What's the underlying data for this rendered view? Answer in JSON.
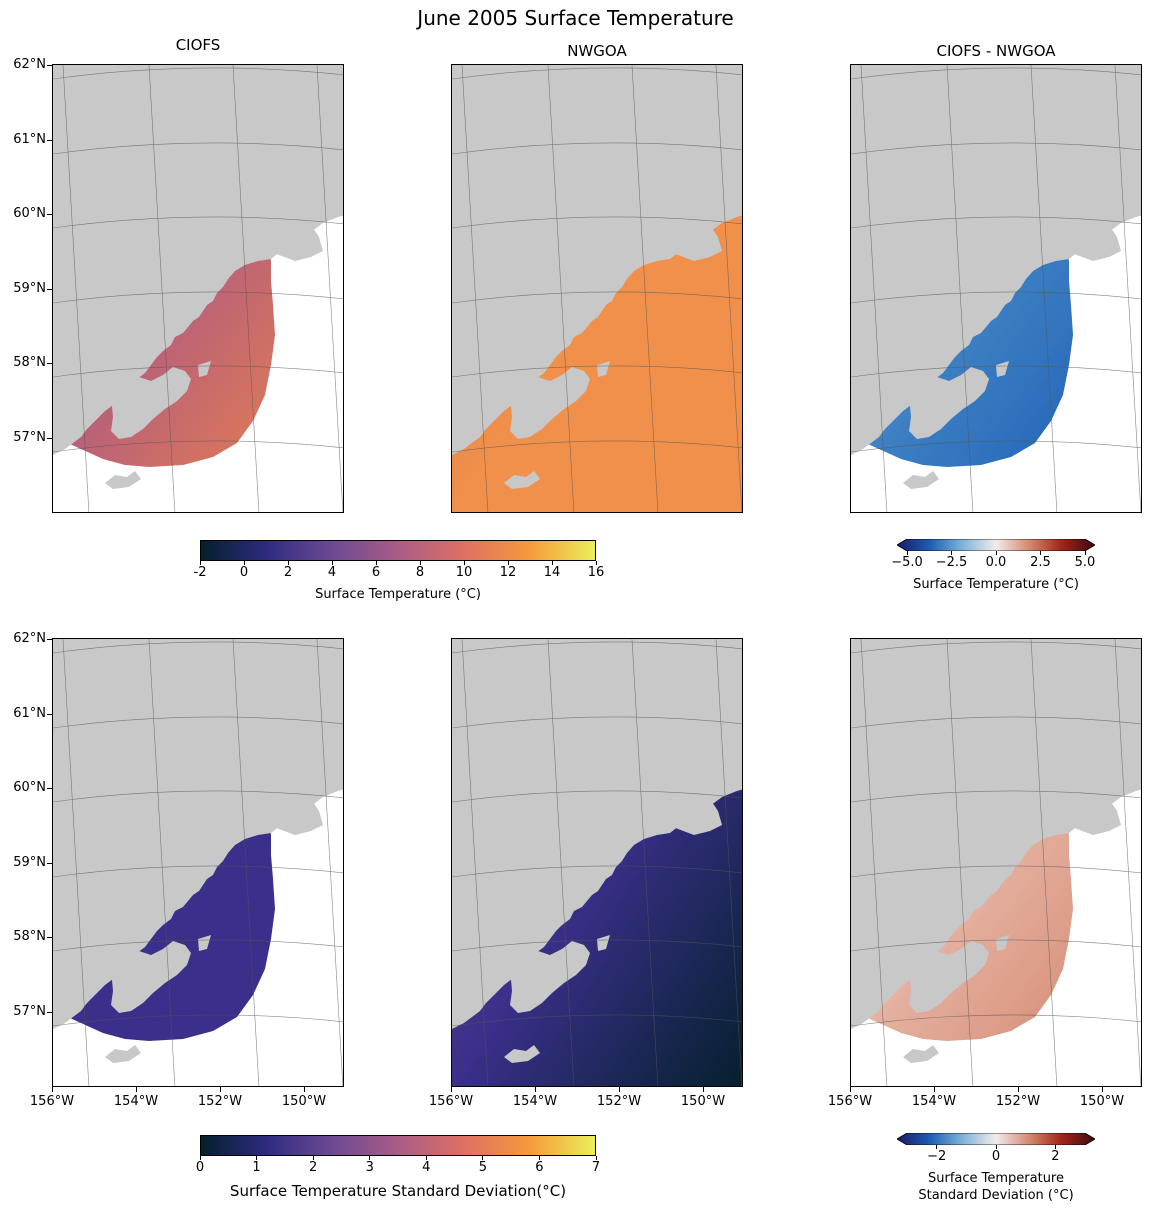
{
  "figure": {
    "title": "June 2005 Surface Temperature"
  },
  "columns": [
    {
      "title": "CIOFS",
      "kind": "ciofs"
    },
    {
      "title": "NWGOA",
      "kind": "nwgoa"
    },
    {
      "title": "CIOFS - NWGOA",
      "kind": "diff"
    }
  ],
  "lat_ticks": [
    "62°N",
    "61°N",
    "60°N",
    "59°N",
    "58°N",
    "57°N"
  ],
  "lon_ticks": [
    "156°W",
    "154°W",
    "152°W",
    "150°W"
  ],
  "colorbars": {
    "top_temp": {
      "label": "Surface Temperature (°C)",
      "ticks": [
        "-2",
        "0",
        "2",
        "4",
        "6",
        "8",
        "10",
        "12",
        "14",
        "16"
      ],
      "range": [
        -2,
        16
      ],
      "colormap": "thermal"
    },
    "top_diff": {
      "label": "Surface Temperature (°C)",
      "ticks": [
        "−5.0",
        "−2.5",
        "0.0",
        "2.5",
        "5.0"
      ],
      "range": [
        -5,
        5
      ],
      "colormap": "balance",
      "extend": "both"
    },
    "bottom_std": {
      "label": "Surface Temperature Standard Deviation(°C)",
      "ticks": [
        "0",
        "1",
        "2",
        "3",
        "4",
        "5",
        "6",
        "7"
      ],
      "range": [
        0,
        7
      ],
      "colormap": "thermal"
    },
    "bottom_diff": {
      "label_line1": "Surface Temperature",
      "label_line2": "Standard Deviation (°C)",
      "ticks": [
        "−2",
        "0",
        "2"
      ],
      "range": [
        -3,
        3
      ],
      "colormap": "balance",
      "extend": "both"
    }
  },
  "colors": {
    "land": "#c8c8c8",
    "ocean_outside_domain": "#ffffff",
    "grid": "#555555",
    "thermal_stops": [
      "#04202c",
      "#2f2b7f",
      "#6b4a92",
      "#a95c86",
      "#de6f64",
      "#f59a3c",
      "#e9f05a"
    ],
    "balance_stops": [
      "#1a1a66",
      "#1f5fb5",
      "#7fb2d9",
      "#f1ece9",
      "#d38770",
      "#a12617",
      "#3c0911"
    ],
    "ciofs_mean": "#b8607a",
    "ciofs_outer": "#e9804e",
    "nwgoa_mean": "#f0904a",
    "nwgoa_inner": "#d37062",
    "diff_mean": "#3f82c4",
    "std_low": "#3a2f8a",
    "std_mid": "#7a4f8f",
    "diff_std": "#e6b3a2"
  }
}
